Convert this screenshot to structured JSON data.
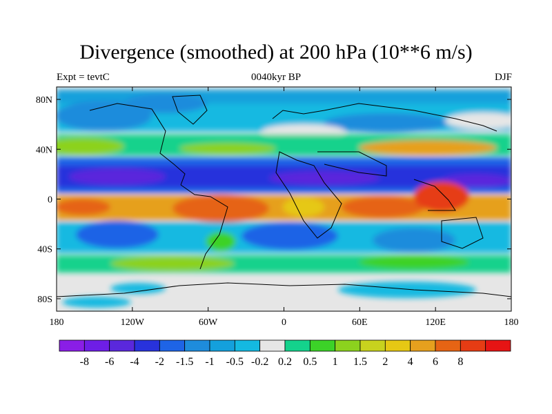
{
  "header": {
    "title": "Divergence (smoothed) at 200 hPa (10**6 m/s)",
    "left_label": "Expt = tevtC",
    "center_label": "0040kyr BP",
    "right_label": "DJF"
  },
  "map": {
    "lon_range": [
      -180,
      180
    ],
    "lat_range": [
      -90,
      90
    ],
    "x_ticks": [
      {
        "value": -180,
        "label": "180"
      },
      {
        "value": -120,
        "label": "120W"
      },
      {
        "value": -60,
        "label": "60W"
      },
      {
        "value": 0,
        "label": "0"
      },
      {
        "value": 60,
        "label": "60E"
      },
      {
        "value": 120,
        "label": "120E"
      },
      {
        "value": 180,
        "label": "180"
      }
    ],
    "y_ticks": [
      {
        "value": 80,
        "label": "80N"
      },
      {
        "value": 40,
        "label": "40N"
      },
      {
        "value": 0,
        "label": "0"
      },
      {
        "value": -40,
        "label": "40S"
      },
      {
        "value": -80,
        "label": "80S"
      }
    ]
  },
  "colorbar": {
    "colors": [
      "#8a1ee6",
      "#6e1ee6",
      "#5a28dc",
      "#2832dc",
      "#1e64e6",
      "#1e8cdc",
      "#14a0dc",
      "#14b9e1",
      "#e6e6e6",
      "#14d28c",
      "#3cd228",
      "#8cd21e",
      "#c8d21e",
      "#e6c814",
      "#e6a01e",
      "#e66414",
      "#e63c14",
      "#e61414"
    ],
    "labels": [
      "-8",
      "-6",
      "-4",
      "-2",
      "-1.5",
      "-1",
      "-0.5",
      "-0.2",
      "0.2",
      "0.5",
      "1",
      "1.5",
      "2",
      "4",
      "6",
      "8"
    ]
  }
}
